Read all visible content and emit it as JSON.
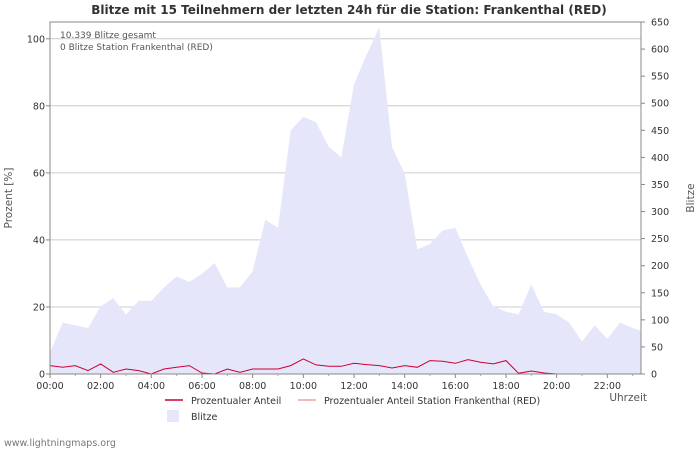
{
  "chart_data": {
    "type": "area",
    "title": "Blitze mit 15 Teilnehmern der letzten 24h für die Station: Frankenthal (RED)",
    "xlabel": "Uhrzeit",
    "ylabel_left": "Prozent   [%]",
    "ylabel_right": "Blitze",
    "annotations": [
      "10.339 Blitze gesamt",
      "0 Blitze Station Frankenthal (RED)"
    ],
    "x_ticks": [
      "00:00",
      "02:00",
      "04:00",
      "06:00",
      "08:00",
      "10:00",
      "12:00",
      "14:00",
      "16:00",
      "18:00",
      "20:00",
      "22:00"
    ],
    "y_left_ticks": [
      "0",
      "20",
      "40",
      "60",
      "80",
      "100"
    ],
    "y_right_ticks": [
      "0",
      "50",
      "100",
      "150",
      "200",
      "250",
      "300",
      "350",
      "400",
      "450",
      "500",
      "550",
      "600",
      "650"
    ],
    "ylim_left": [
      0,
      105
    ],
    "ylim_right": [
      0,
      650
    ],
    "xlim_hours": [
      0,
      23.33
    ],
    "x_hours": [
      0,
      0.5,
      1,
      1.5,
      2,
      2.5,
      3,
      3.5,
      4,
      4.5,
      5,
      5.5,
      6,
      6.5,
      7,
      7.5,
      8,
      8.5,
      9,
      9.5,
      10,
      10.5,
      11,
      11.5,
      12,
      12.5,
      13,
      13.5,
      14,
      14.5,
      15,
      15.5,
      16,
      16.5,
      17,
      17.5,
      18,
      18.5,
      19,
      19.5,
      20,
      20.5,
      21,
      21.5,
      22,
      22.5,
      23,
      23.33
    ],
    "series": [
      {
        "name": "Blitze",
        "axis": "right",
        "color": "#e6e6fa",
        "values": [
          40,
          95,
          90,
          85,
          125,
          140,
          110,
          135,
          135,
          160,
          180,
          170,
          185,
          205,
          160,
          160,
          190,
          285,
          270,
          450,
          475,
          465,
          420,
          400,
          535,
          590,
          640,
          420,
          370,
          230,
          240,
          265,
          270,
          215,
          165,
          125,
          115,
          110,
          165,
          115,
          110,
          95,
          60,
          90,
          65,
          95,
          85,
          80
        ]
      },
      {
        "name": "Prozentualer Anteil",
        "axis": "left",
        "color": "#cc0033",
        "values": [
          2.5,
          2.0,
          2.5,
          1.0,
          3.0,
          0.5,
          1.5,
          1.0,
          0.0,
          1.5,
          2.0,
          2.5,
          0.3,
          0.0,
          1.5,
          0.5,
          1.5,
          1.5,
          1.5,
          2.5,
          4.5,
          2.7,
          2.3,
          2.3,
          3.2,
          2.8,
          2.5,
          1.8,
          2.5,
          2.0,
          4.0,
          3.8,
          3.2,
          4.3,
          3.5,
          3.0,
          4.0,
          0.2,
          0.9,
          0.3,
          0.0,
          0.0,
          0.0,
          0.0,
          0.0,
          0.0,
          0.0,
          0.0
        ]
      },
      {
        "name": "Prozentualer Anteil Station Frankenthal (RED)",
        "axis": "left",
        "color": "#f0a0a0",
        "values": [
          0,
          0,
          0,
          0,
          0,
          0,
          0,
          0,
          0,
          0,
          0,
          0,
          0,
          0,
          0,
          0,
          0,
          0,
          0,
          0,
          0,
          0,
          0,
          0,
          0,
          0,
          0,
          0,
          0,
          0,
          0,
          0,
          0,
          0,
          0,
          0,
          0,
          0,
          0,
          0,
          0,
          0,
          0,
          0,
          0,
          0,
          0,
          0
        ]
      }
    ],
    "legend": [
      {
        "label": "Prozentualer Anteil",
        "kind": "line",
        "color": "#cc0033"
      },
      {
        "label": "Prozentualer Anteil Station Frankenthal (RED)",
        "kind": "line",
        "color": "#f0a0a0"
      },
      {
        "label": "Blitze",
        "kind": "box",
        "color": "#e6e6fa"
      }
    ],
    "legend_position": "bottom",
    "grid": true
  },
  "footer": {
    "credit": "www.lightningmaps.org"
  }
}
